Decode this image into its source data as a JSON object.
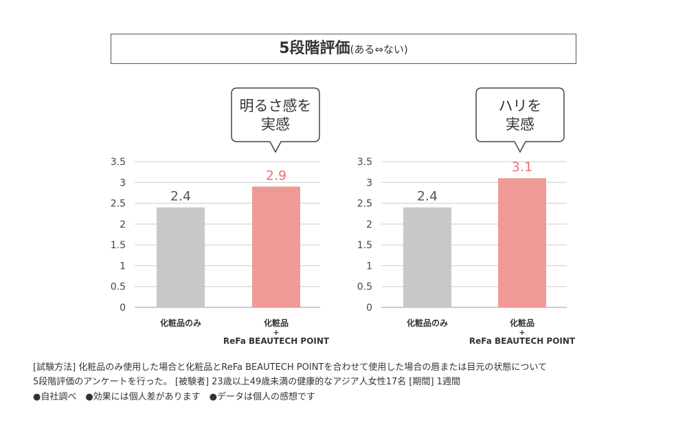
{
  "title": {
    "main": "5段階評価",
    "sub": "(ある⇔ない)"
  },
  "colors": {
    "base_bar": "#c8c8ca",
    "refa_bar": "#ef9a96",
    "refa_label": "#e8706a",
    "grid": "#cccccc"
  },
  "chart_data": [
    {
      "type": "bar",
      "callout": [
        "明るさ感を",
        "実感"
      ],
      "categories": [
        [
          "化粧品のみ"
        ],
        [
          "化粧品",
          "+",
          "ReFa BEAUTECH POINT"
        ]
      ],
      "values": [
        2.4,
        2.9
      ],
      "value_labels": [
        "2.4",
        "2.9"
      ],
      "ylim": [
        0,
        3.5
      ],
      "yticks": [
        "3.5",
        "3",
        "2.5",
        "2",
        "1.5",
        "1",
        "0.5",
        "0"
      ],
      "grid": true
    },
    {
      "type": "bar",
      "callout": [
        "ハリを",
        "実感"
      ],
      "categories": [
        [
          "化粧品のみ"
        ],
        [
          "化粧品",
          "+",
          "ReFa BEAUTECH POINT"
        ]
      ],
      "values": [
        2.4,
        3.1
      ],
      "value_labels": [
        "2.4",
        "3.1"
      ],
      "ylim": [
        0,
        3.5
      ],
      "yticks": [
        "3.5",
        "3",
        "2.5",
        "2",
        "1.5",
        "1",
        "0.5",
        "0"
      ],
      "grid": true
    }
  ],
  "notes": [
    "[試験方法] 化粧品のみ使用した場合と化粧品とReFa BEAUTECH POINTを合わせて使用した場合の唇または目元の状態について",
    "5段階評価のアンケートを行った。 [被験者] 23歳以上49歳未満の健康的なアジア人女性17名 [期間] 1週間",
    "●自社調べ　●効果には個人差があります　●データは個人の感想です"
  ]
}
